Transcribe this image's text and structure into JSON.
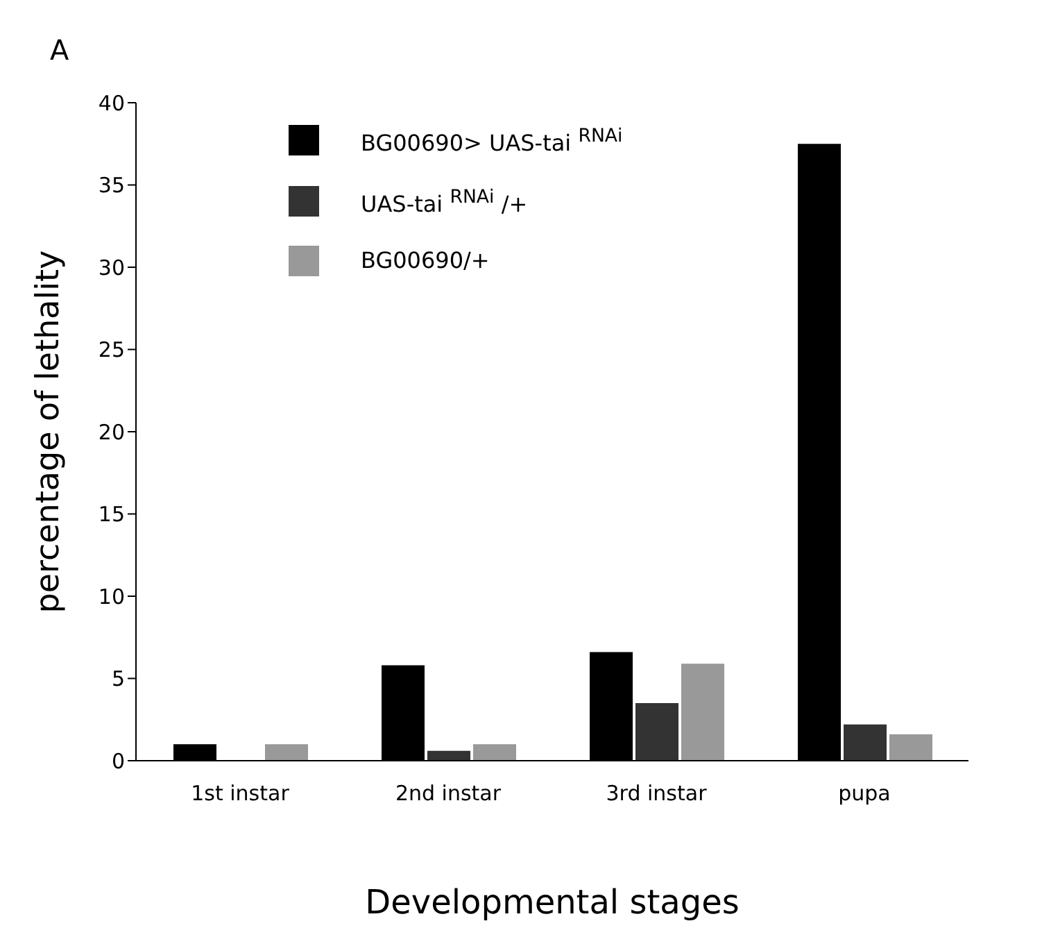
{
  "chart_data": {
    "type": "bar",
    "xlabel": "Developmental stages",
    "ylabel": "percentage of lethality",
    "annotations": [
      "A"
    ],
    "categories": [
      "1st instar",
      "2nd instar",
      "3rd instar",
      "pupa"
    ],
    "series": [
      {
        "name": "BG00690> UAS-tai $^{RNAi}$",
        "color": "#000000",
        "values": [
          1.0,
          5.8,
          6.6,
          37.5
        ]
      },
      {
        "name": "UAS-tai $^{RNAi}$ /+",
        "color": "#333333",
        "values": [
          0,
          0.6,
          3.5,
          2.2
        ]
      },
      {
        "name": "BG00690/+",
        "color": "#999999",
        "values": [
          1.0,
          1.0,
          5.9,
          1.6
        ]
      }
    ],
    "ylim": [
      0,
      40
    ],
    "yticks": [
      0,
      5,
      10,
      15,
      20,
      25,
      30,
      35,
      40
    ],
    "grid": false,
    "legend": "top left"
  }
}
